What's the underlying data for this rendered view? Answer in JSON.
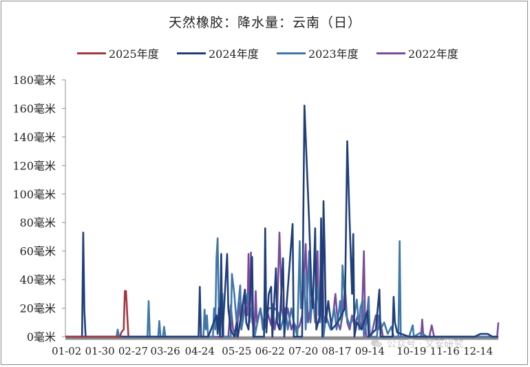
{
  "chart_data": {
    "type": "line",
    "title": "天然橡胶：降水量：云南（日）",
    "ylim": [
      0,
      180
    ],
    "y_ticks": [
      "0毫米",
      "20毫米",
      "40毫米",
      "60毫米",
      "80毫米",
      "100毫米",
      "120毫米",
      "140毫米",
      "160毫米",
      "180毫米"
    ],
    "y_tick_values": [
      0,
      20,
      40,
      60,
      80,
      100,
      120,
      140,
      160,
      180
    ],
    "x_domain": [
      1,
      365
    ],
    "x_ticks": [
      {
        "label": "01-02",
        "day": 2
      },
      {
        "label": "01-30",
        "day": 30
      },
      {
        "label": "02-27",
        "day": 58
      },
      {
        "label": "03-26",
        "day": 85
      },
      {
        "label": "04-24",
        "day": 114
      },
      {
        "label": "05-25",
        "day": 145
      },
      {
        "label": "06-22",
        "day": 173
      },
      {
        "label": "07-20",
        "day": 201
      },
      {
        "label": "08-17",
        "day": 229
      },
      {
        "label": "09-14",
        "day": 257
      },
      {
        "label": "10-19",
        "day": 292
      },
      {
        "label": "11-16",
        "day": 320
      },
      {
        "label": "12-14",
        "day": 348
      }
    ],
    "grid": false,
    "legend_position": "top",
    "series": [
      {
        "name": "2025年度",
        "color": "#a3373f",
        "points": [
          [
            1,
            0
          ],
          [
            47,
            0
          ],
          [
            48,
            3
          ],
          [
            50,
            5
          ],
          [
            51,
            32
          ],
          [
            52,
            32
          ],
          [
            53,
            15
          ],
          [
            54,
            0
          ]
        ]
      },
      {
        "name": "2024年度",
        "color": "#1f3e7a",
        "points": [
          [
            1,
            0
          ],
          [
            15,
            0
          ],
          [
            16,
            73
          ],
          [
            17,
            18
          ],
          [
            18,
            0
          ],
          [
            113,
            0
          ],
          [
            114,
            35
          ],
          [
            115,
            0
          ],
          [
            121,
            0
          ],
          [
            122,
            2
          ],
          [
            128,
            15
          ],
          [
            129,
            2
          ],
          [
            130,
            20
          ],
          [
            131,
            0
          ],
          [
            132,
            58
          ],
          [
            133,
            0
          ],
          [
            137,
            58
          ],
          [
            138,
            20
          ],
          [
            140,
            5
          ],
          [
            143,
            0
          ],
          [
            145,
            10
          ],
          [
            146,
            0
          ],
          [
            152,
            33
          ],
          [
            153,
            10
          ],
          [
            155,
            5
          ],
          [
            158,
            56
          ],
          [
            159,
            0
          ],
          [
            168,
            0
          ],
          [
            169,
            76
          ],
          [
            170,
            3
          ],
          [
            172,
            30
          ],
          [
            174,
            35
          ],
          [
            175,
            0
          ],
          [
            178,
            48
          ],
          [
            179,
            10
          ],
          [
            181,
            5
          ],
          [
            184,
            55
          ],
          [
            185,
            0
          ],
          [
            192,
            79
          ],
          [
            193,
            0
          ],
          [
            200,
            0
          ],
          [
            202,
            162
          ],
          [
            204,
            120
          ],
          [
            206,
            80
          ],
          [
            208,
            30
          ],
          [
            209,
            20
          ],
          [
            211,
            76
          ],
          [
            212,
            5
          ],
          [
            215,
            15
          ],
          [
            216,
            83
          ],
          [
            217,
            0
          ],
          [
            218,
            95
          ],
          [
            219,
            60
          ],
          [
            220,
            10
          ],
          [
            222,
            25
          ],
          [
            225,
            5
          ],
          [
            230,
            10
          ],
          [
            236,
            20
          ],
          [
            238,
            137
          ],
          [
            240,
            80
          ],
          [
            242,
            30
          ],
          [
            243,
            72
          ],
          [
            244,
            0
          ],
          [
            246,
            10
          ],
          [
            250,
            5
          ],
          [
            255,
            18
          ],
          [
            256,
            0
          ],
          [
            262,
            5
          ],
          [
            265,
            33
          ],
          [
            266,
            0
          ],
          [
            276,
            0
          ],
          [
            277,
            28
          ],
          [
            278,
            10
          ],
          [
            280,
            3
          ],
          [
            290,
            0
          ],
          [
            345,
            0
          ],
          [
            350,
            2
          ],
          [
            356,
            2
          ],
          [
            360,
            0
          ],
          [
            365,
            0
          ]
        ]
      },
      {
        "name": "2023年度",
        "color": "#3f78a8",
        "points": [
          [
            1,
            0
          ],
          [
            44,
            0
          ],
          [
            45,
            5
          ],
          [
            46,
            0
          ],
          [
            70,
            0
          ],
          [
            71,
            25
          ],
          [
            72,
            0
          ],
          [
            79,
            0
          ],
          [
            80,
            11
          ],
          [
            81,
            0
          ],
          [
            83,
            0
          ],
          [
            84,
            7
          ],
          [
            85,
            0
          ],
          [
            117,
            0
          ],
          [
            118,
            19
          ],
          [
            119,
            5
          ],
          [
            120,
            15
          ],
          [
            121,
            0
          ],
          [
            125,
            0
          ],
          [
            126,
            20
          ],
          [
            127,
            5
          ],
          [
            128,
            55
          ],
          [
            129,
            69
          ],
          [
            130,
            20
          ],
          [
            131,
            5
          ],
          [
            133,
            30
          ],
          [
            134,
            0
          ],
          [
            140,
            0
          ],
          [
            141,
            44
          ],
          [
            143,
            30
          ],
          [
            145,
            10
          ],
          [
            148,
            36
          ],
          [
            149,
            5
          ],
          [
            152,
            20
          ],
          [
            154,
            30
          ],
          [
            157,
            18
          ],
          [
            160,
            0
          ],
          [
            165,
            20
          ],
          [
            167,
            5
          ],
          [
            172,
            20
          ],
          [
            177,
            20
          ],
          [
            180,
            17
          ],
          [
            182,
            5
          ],
          [
            186,
            20
          ],
          [
            188,
            5
          ],
          [
            191,
            20
          ],
          [
            193,
            10
          ],
          [
            196,
            0
          ],
          [
            198,
            67
          ],
          [
            199,
            20
          ],
          [
            202,
            45
          ],
          [
            203,
            5
          ],
          [
            206,
            60
          ],
          [
            207,
            10
          ],
          [
            209,
            30
          ],
          [
            211,
            15
          ],
          [
            213,
            35
          ],
          [
            215,
            10
          ],
          [
            217,
            25
          ],
          [
            218,
            0
          ],
          [
            220,
            14
          ],
          [
            224,
            5
          ],
          [
            227,
            20
          ],
          [
            229,
            5
          ],
          [
            232,
            25
          ],
          [
            233,
            10
          ],
          [
            234,
            50
          ],
          [
            236,
            25
          ],
          [
            237,
            15
          ],
          [
            240,
            8
          ],
          [
            244,
            15
          ],
          [
            246,
            26
          ],
          [
            248,
            5
          ],
          [
            249,
            20
          ],
          [
            251,
            26
          ],
          [
            252,
            0
          ],
          [
            254,
            10
          ],
          [
            256,
            28
          ],
          [
            257,
            0
          ],
          [
            263,
            0
          ],
          [
            264,
            15
          ],
          [
            266,
            5
          ],
          [
            269,
            10
          ],
          [
            272,
            2
          ],
          [
            275,
            7
          ],
          [
            277,
            0
          ],
          [
            281,
            0
          ],
          [
            282,
            67
          ],
          [
            283,
            0
          ],
          [
            290,
            0
          ],
          [
            293,
            8
          ],
          [
            294,
            0
          ],
          [
            300,
            3
          ],
          [
            305,
            0
          ],
          [
            365,
            0
          ]
        ]
      },
      {
        "name": "2022年度",
        "color": "#7a4b9c",
        "points": [
          [
            1,
            0
          ],
          [
            138,
            0
          ],
          [
            140,
            22
          ],
          [
            142,
            5
          ],
          [
            145,
            0
          ],
          [
            147,
            24
          ],
          [
            149,
            5
          ],
          [
            151,
            28
          ],
          [
            154,
            15
          ],
          [
            155,
            58
          ],
          [
            156,
            10
          ],
          [
            157,
            59
          ],
          [
            158,
            20
          ],
          [
            160,
            5
          ],
          [
            161,
            32
          ],
          [
            162,
            10
          ],
          [
            165,
            20
          ],
          [
            168,
            5
          ],
          [
            171,
            17
          ],
          [
            174,
            8
          ],
          [
            175,
            23
          ],
          [
            177,
            5
          ],
          [
            179,
            16
          ],
          [
            181,
            73
          ],
          [
            183,
            20
          ],
          [
            185,
            8
          ],
          [
            188,
            20
          ],
          [
            191,
            5
          ],
          [
            193,
            10
          ],
          [
            196,
            5
          ],
          [
            198,
            8
          ],
          [
            200,
            15
          ],
          [
            203,
            65
          ],
          [
            205,
            10
          ],
          [
            207,
            20
          ],
          [
            209,
            30
          ],
          [
            211,
            10
          ],
          [
            213,
            60
          ],
          [
            214,
            15
          ],
          [
            216,
            25
          ],
          [
            217,
            64
          ],
          [
            218,
            10
          ],
          [
            220,
            15
          ],
          [
            222,
            10
          ],
          [
            224,
            5
          ],
          [
            226,
            15
          ],
          [
            228,
            30
          ],
          [
            230,
            10
          ],
          [
            232,
            5
          ],
          [
            234,
            15
          ],
          [
            236,
            36
          ],
          [
            238,
            10
          ],
          [
            240,
            5
          ],
          [
            242,
            15
          ],
          [
            244,
            8
          ],
          [
            247,
            15
          ],
          [
            250,
            5
          ],
          [
            252,
            60
          ],
          [
            253,
            10
          ],
          [
            254,
            0
          ],
          [
            258,
            0
          ],
          [
            262,
            15
          ],
          [
            264,
            5
          ],
          [
            266,
            10
          ],
          [
            268,
            0
          ],
          [
            300,
            0
          ],
          [
            301,
            12
          ],
          [
            302,
            0
          ],
          [
            307,
            0
          ],
          [
            309,
            8
          ],
          [
            311,
            0
          ],
          [
            364,
            0
          ],
          [
            365,
            10
          ]
        ]
      }
    ]
  },
  "watermark": {
    "text": "公众号 · 文安研究"
  }
}
